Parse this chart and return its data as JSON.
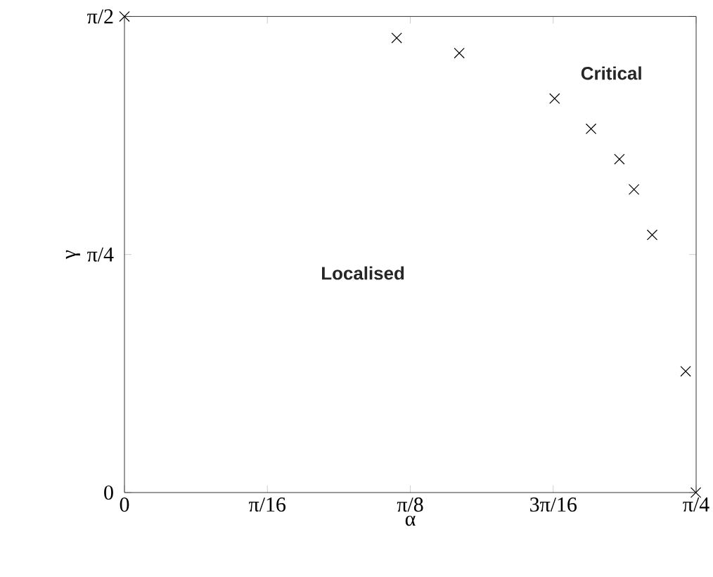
{
  "chart_data": {
    "type": "scatter",
    "xlabel": "α",
    "ylabel": "γ",
    "x": [
      0,
      0.374,
      0.46,
      0.591,
      0.641,
      0.68,
      0.7,
      0.725,
      0.771,
      0.785
    ],
    "values": [
      1.5708,
      1.5,
      1.45,
      1.3,
      1.2,
      1.1,
      1.0,
      0.85,
      0.4,
      0
    ],
    "color": "#000000",
    "marker": "cross",
    "xlim": [
      0,
      0.7854
    ],
    "ylim": [
      0,
      1.5708
    ],
    "xticks": [
      {
        "value": 0,
        "label": "0"
      },
      {
        "value": 0.19635,
        "label": "π/16"
      },
      {
        "value": 0.3927,
        "label": "π/8"
      },
      {
        "value": 0.58905,
        "label": "3π/16"
      },
      {
        "value": 0.7854,
        "label": "π/4"
      }
    ],
    "yticks": [
      {
        "value": 0,
        "label": "0"
      },
      {
        "value": 0.7854,
        "label": "π/4"
      },
      {
        "value": 1.5708,
        "label": "π/2"
      }
    ],
    "annotations": [
      "Localised",
      "Critical"
    ],
    "grid": false
  }
}
